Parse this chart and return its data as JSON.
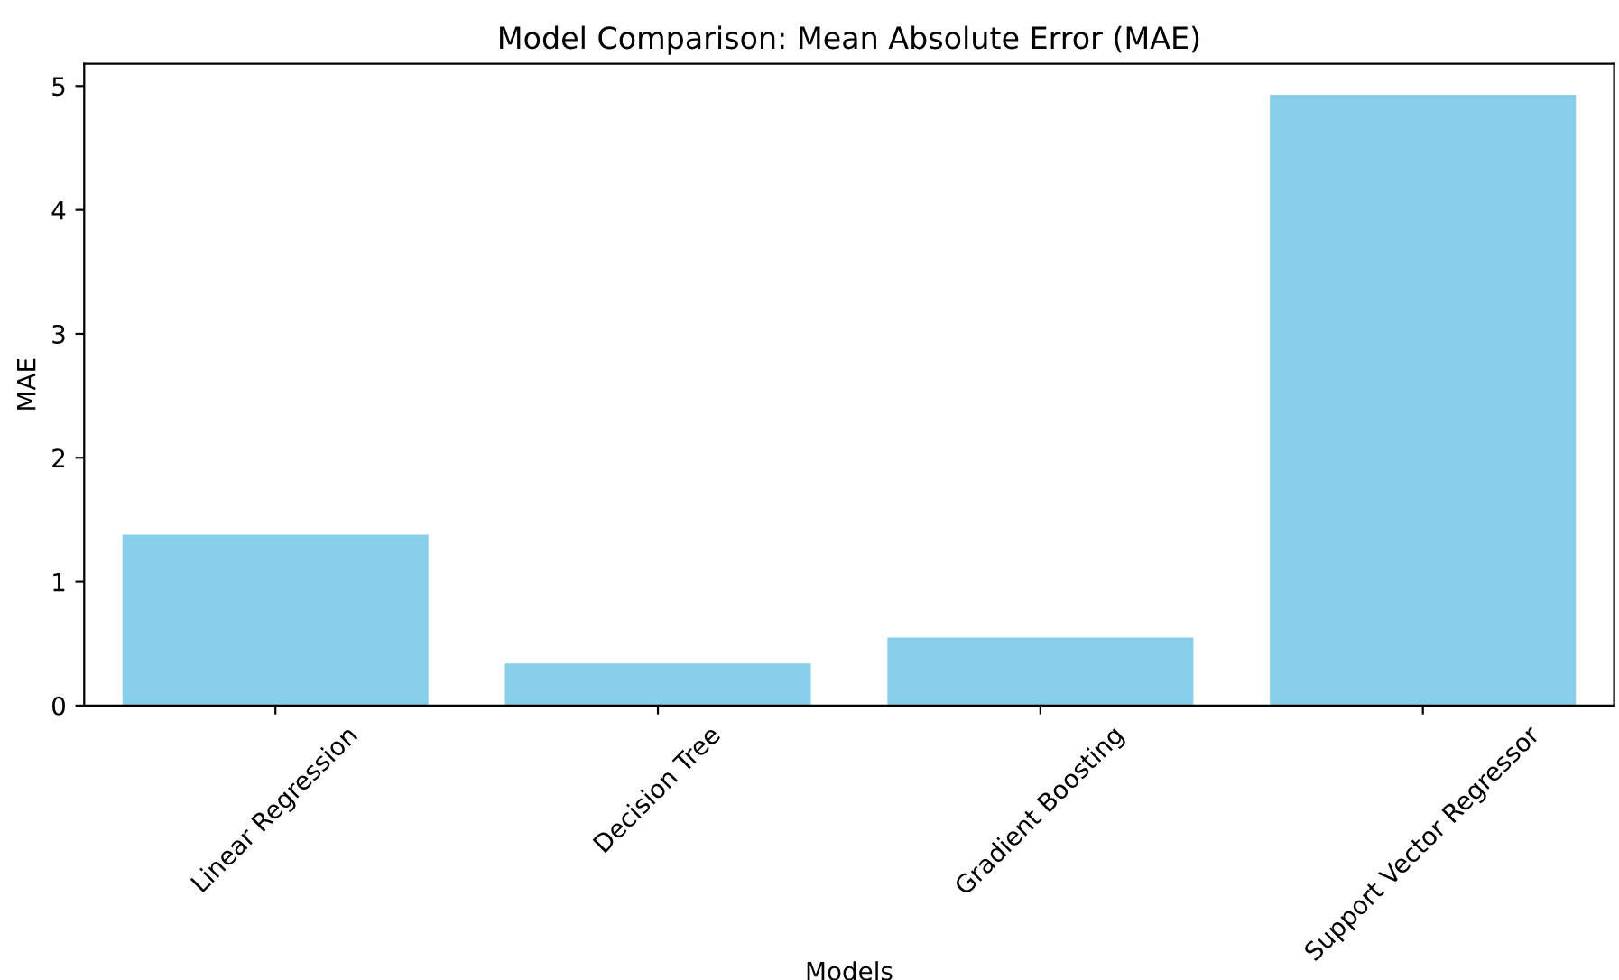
{
  "chart_data": {
    "type": "bar",
    "title": "Model Comparison: Mean Absolute Error (MAE)",
    "xlabel": "Models",
    "ylabel": "MAE",
    "categories": [
      "Linear Regression",
      "Decision Tree",
      "Gradient Boosting",
      "Support Vector Regressor"
    ],
    "values": [
      1.38,
      0.34,
      0.55,
      4.93
    ],
    "color": "#87ceeb",
    "ylim": [
      0,
      5.18
    ],
    "yticks": [
      0,
      1,
      2,
      3,
      4,
      5
    ],
    "grid": false,
    "legend": false
  }
}
